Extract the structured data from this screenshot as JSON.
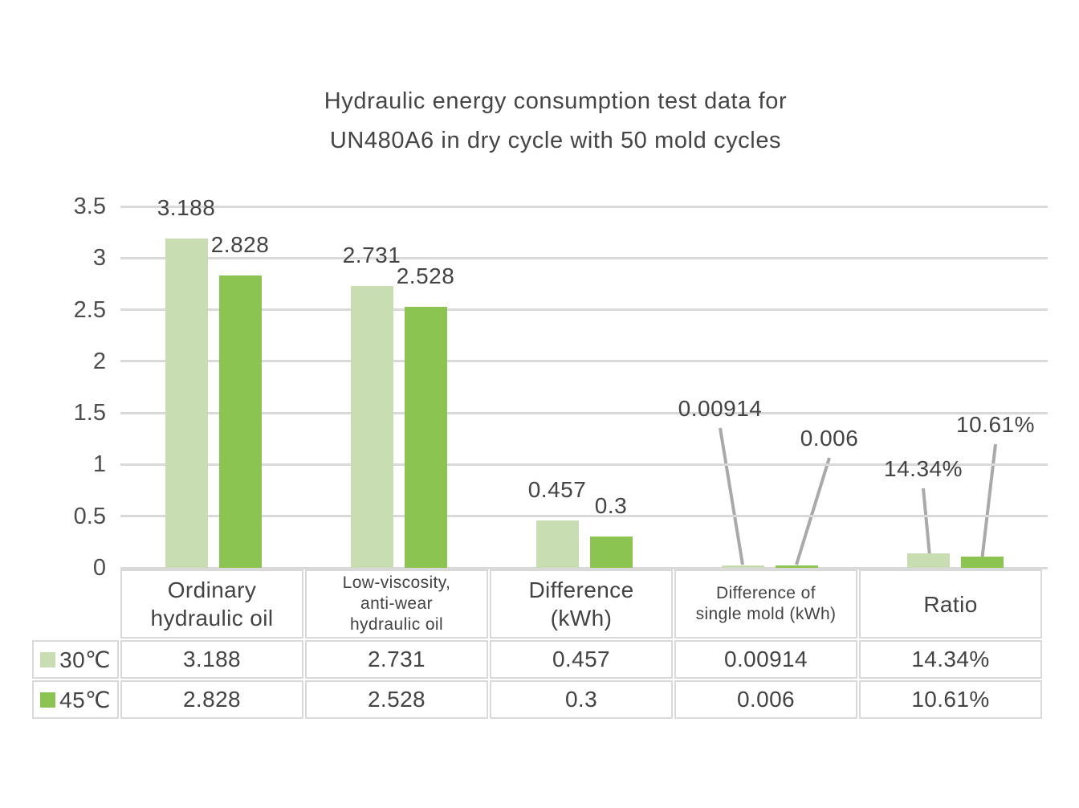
{
  "title": {
    "line1": "Hydraulic energy consumption test data for",
    "line2": "UN480A6 in dry cycle with 50 mold cycles"
  },
  "colors": {
    "series_30c": "#c8deb2",
    "series_45c": "#8cc452",
    "gridline": "#d9d9d9",
    "leader_line": "#a9a9a9",
    "text": "#434343",
    "table_border": "#d9d9d9"
  },
  "chart_data": {
    "type": "bar",
    "title": "Hydraulic energy consumption test data for UN480A6 in dry cycle with 50 mold cycles",
    "categories": [
      "Ordinary hydraulic oil",
      "Low-viscosity, anti-wear hydraulic oil",
      "Difference (kWh)",
      "Difference of single mold (kWh)",
      "Ratio"
    ],
    "series": [
      {
        "name": "30℃",
        "color": "#c8deb2",
        "values": [
          3.188,
          2.731,
          0.457,
          0.00914,
          0.1434
        ],
        "labels": [
          "3.188",
          "2.731",
          "0.457",
          "0.00914",
          "14.34%"
        ]
      },
      {
        "name": "45℃",
        "color": "#8cc452",
        "values": [
          2.828,
          2.528,
          0.3,
          0.006,
          0.1061
        ],
        "labels": [
          "2.828",
          "2.528",
          "0.3",
          "0.006",
          "10.61%"
        ]
      }
    ],
    "ylim": [
      0,
      3.5
    ],
    "ytick_step": 0.5,
    "yticks": [
      "0",
      "0.5",
      "1",
      "1.5",
      "2",
      "2.5",
      "3",
      "3.5"
    ],
    "grid": true,
    "xlabel": "",
    "ylabel": "",
    "legend_position": "table-row-headers-bottom-left"
  },
  "table": {
    "column_headers": [
      "Ordinary\nhydraulic oil",
      "Low-viscosity,\nanti-wear\nhydraulic oil",
      "Difference\n(kWh)",
      "Difference of\nsingle mold (kWh)",
      "Ratio"
    ],
    "rows": [
      {
        "legend": "30℃",
        "swatch_color": "#c8deb2",
        "values": [
          "3.188",
          "2.731",
          "0.457",
          "0.00914",
          "14.34%"
        ]
      },
      {
        "legend": "45℃",
        "swatch_color": "#8cc452",
        "values": [
          "2.828",
          "2.528",
          "0.3",
          "0.006",
          "10.61%"
        ]
      }
    ]
  }
}
